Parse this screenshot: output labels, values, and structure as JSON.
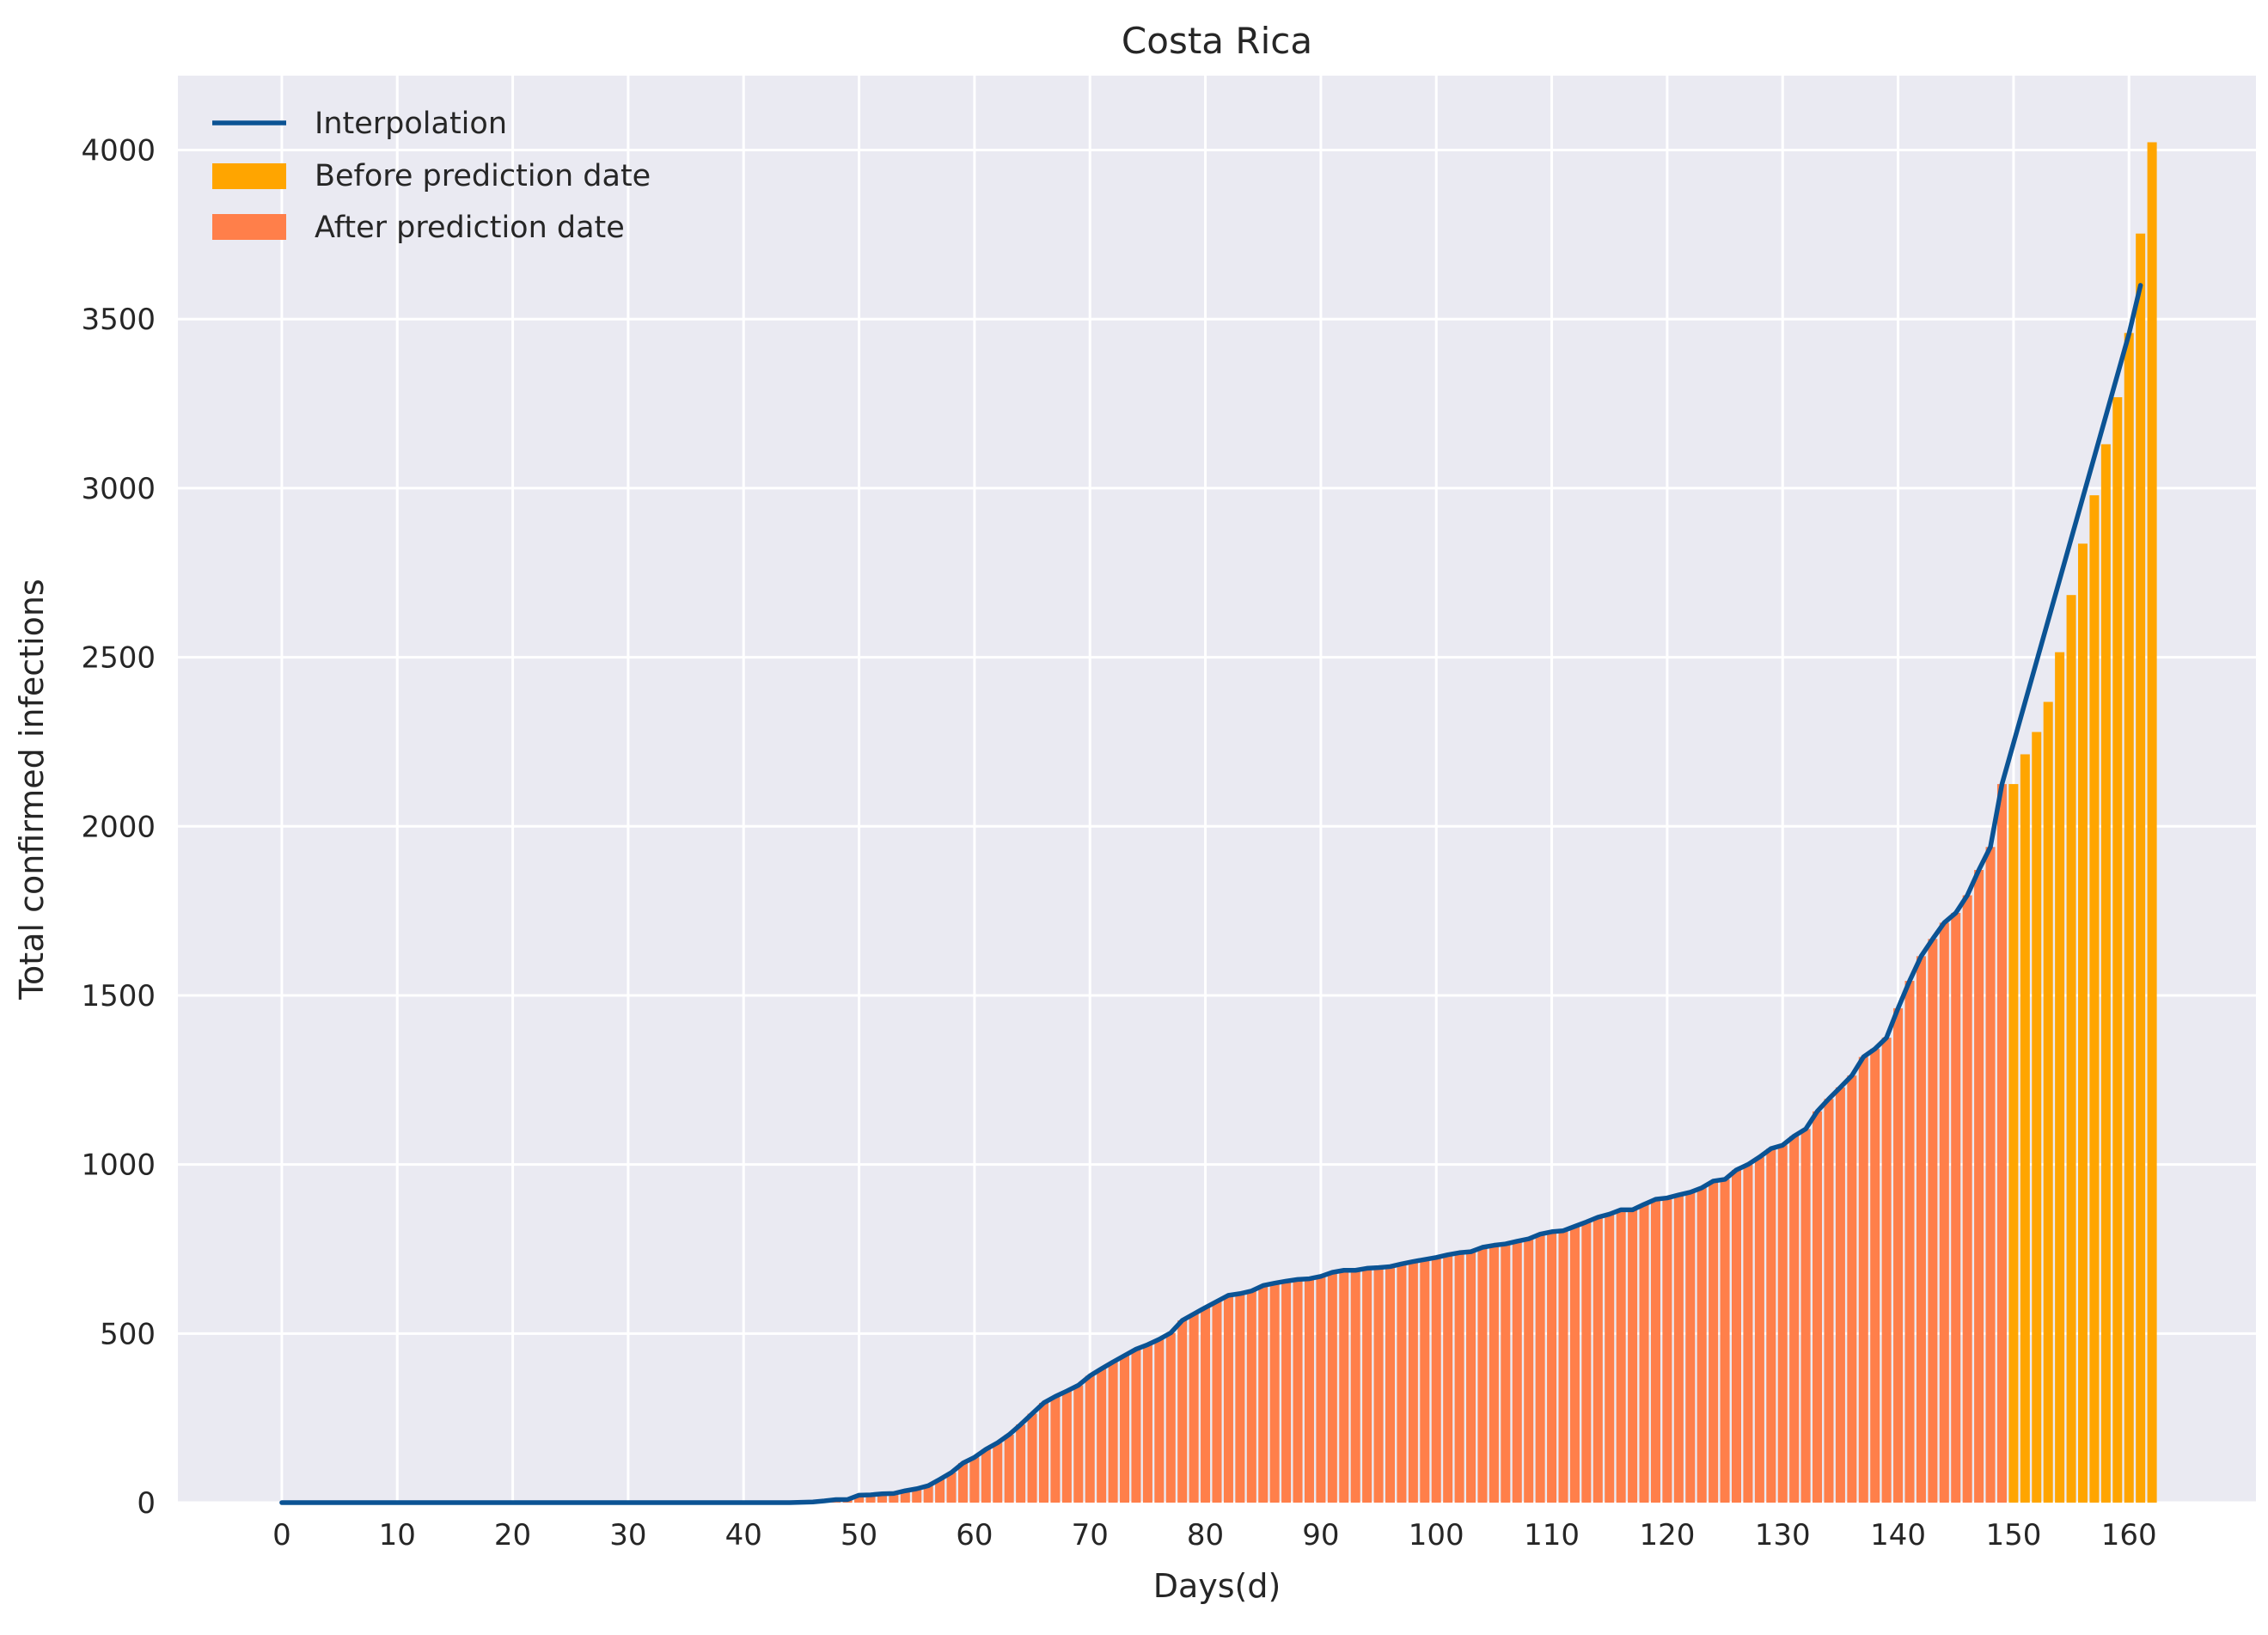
{
  "colors": {
    "background": "#eaeaf2",
    "grid": "#ffffff",
    "line": "#0b5394",
    "before_bar": "#ffa500",
    "after_bar": "#ff7f4a",
    "text": "#262626"
  },
  "chart_data": {
    "type": "bar",
    "title": "Costa Rica",
    "xlabel": "Days(d)",
    "ylabel": "Total confirmed infections",
    "xlim": [
      -9,
      171
    ],
    "ylim": [
      0,
      4220
    ],
    "grid": true,
    "legend_position": "top-left",
    "x_ticks": [
      0,
      10,
      20,
      30,
      40,
      50,
      60,
      70,
      80,
      90,
      100,
      110,
      120,
      130,
      140,
      150,
      160
    ],
    "y_ticks": [
      0,
      500,
      1000,
      1500,
      2000,
      2500,
      3000,
      3500,
      4000
    ],
    "legend": [
      {
        "label": "Interpolation",
        "kind": "line",
        "color_key": "line"
      },
      {
        "label": "Before prediction date",
        "kind": "patch",
        "color_key": "before_bar"
      },
      {
        "label": "After prediction date",
        "kind": "patch",
        "color_key": "after_bar"
      }
    ],
    "series": [
      {
        "name": "After prediction date",
        "color_key": "after_bar",
        "kind": "bar",
        "x_start": 0,
        "values": [
          0,
          0,
          0,
          0,
          0,
          0,
          0,
          0,
          0,
          0,
          0,
          0,
          0,
          0,
          0,
          0,
          0,
          0,
          0,
          0,
          0,
          0,
          0,
          0,
          0,
          0,
          0,
          0,
          0,
          0,
          0,
          0,
          0,
          0,
          0,
          0,
          0,
          0,
          0,
          0,
          0,
          0,
          0,
          0,
          0,
          1,
          2,
          5,
          9,
          9,
          22,
          23,
          26,
          27,
          35,
          41,
          50,
          69,
          89,
          117,
          134,
          158,
          177,
          201,
          231,
          263,
          295,
          314,
          330,
          347,
          375,
          396,
          416,
          435,
          454,
          467,
          483,
          502,
          539,
          558,
          577,
          595,
          613,
          618,
          626,
          642,
          649,
          655,
          660,
          662,
          669,
          681,
          687,
          687,
          693,
          695,
          698,
          706,
          713,
          719,
          725,
          733,
          739,
          742,
          755,
          761,
          765,
          773,
          780,
          794,
          801,
          804,
          817,
          830,
          844,
          853,
          866,
          866,
          882,
          897,
          901,
          910,
          918,
          931,
          951,
          956,
          984,
          1000,
          1022,
          1047,
          1057,
          1084,
          1105,
          1157,
          1194,
          1228,
          1263,
          1318,
          1342,
          1375,
          1462,
          1543,
          1616,
          1667,
          1715,
          1744,
          1796,
          1871,
          1939,
          2125
        ]
      },
      {
        "name": "Before prediction date",
        "color_key": "before_bar",
        "kind": "bar",
        "x_start": 150,
        "values": [
          2125,
          2213,
          2279,
          2368,
          2515,
          2684,
          2836,
          2979,
          3130,
          3269,
          3459,
          3753,
          4023
        ]
      },
      {
        "name": "Interpolation",
        "color_key": "line",
        "kind": "line",
        "x_start": 0,
        "values": [
          0,
          0,
          0,
          0,
          0,
          0,
          0,
          0,
          0,
          0,
          0,
          0,
          0,
          0,
          0,
          0,
          0,
          0,
          0,
          0,
          0,
          0,
          0,
          0,
          0,
          0,
          0,
          0,
          0,
          0,
          0,
          0,
          0,
          0,
          0,
          0,
          0,
          0,
          0,
          0,
          0,
          0,
          0,
          0,
          0,
          1,
          2,
          5,
          9,
          9,
          22,
          23,
          26,
          27,
          35,
          41,
          50,
          69,
          89,
          117,
          134,
          158,
          177,
          201,
          231,
          263,
          295,
          314,
          330,
          347,
          375,
          396,
          416,
          435,
          454,
          467,
          483,
          502,
          539,
          558,
          577,
          595,
          613,
          618,
          626,
          642,
          649,
          655,
          660,
          662,
          669,
          681,
          687,
          687,
          693,
          695,
          698,
          706,
          713,
          719,
          725,
          733,
          739,
          742,
          755,
          761,
          765,
          773,
          780,
          794,
          801,
          804,
          817,
          830,
          844,
          853,
          866,
          866,
          882,
          897,
          901,
          910,
          918,
          931,
          951,
          956,
          984,
          1000,
          1022,
          1047,
          1057,
          1084,
          1105,
          1157,
          1194,
          1228,
          1263,
          1318,
          1342,
          1375,
          1462,
          1543,
          1616,
          1667,
          1715,
          1744,
          1796,
          1871,
          1939,
          2125,
          2246,
          2367,
          2488,
          2609,
          2730,
          2851,
          2972,
          3093,
          3214,
          3335,
          3456,
          3600
        ]
      }
    ]
  }
}
